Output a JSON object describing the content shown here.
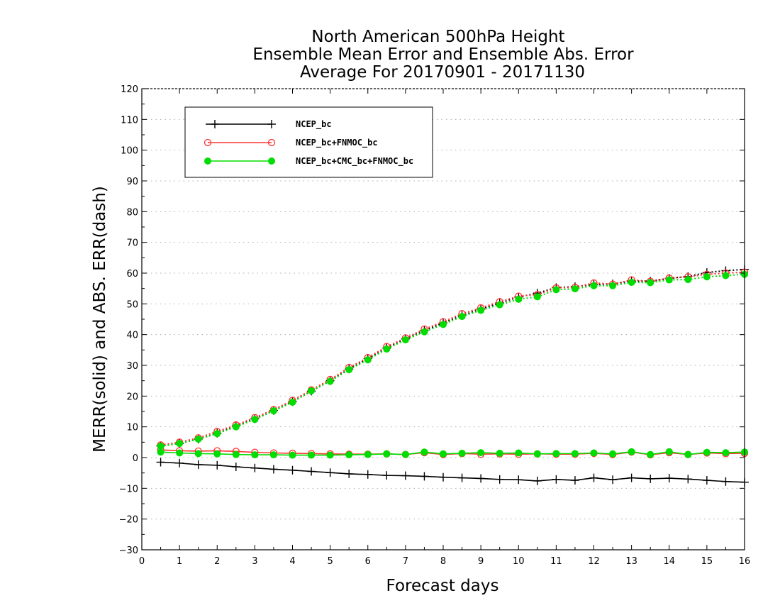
{
  "colors": {
    "background": "#ffffff",
    "frame": "#000000",
    "grid": "#b0b0b0",
    "NCEP_bc": "#000000",
    "NCEP_bc+FNMOC_bc": "#ff3333",
    "NCEP_bc+CMC_bc+FNMOC_bc": "#00dd00"
  },
  "chart_data": {
    "type": "line",
    "title": [
      "North American 500hPa Height",
      "Ensemble Mean Error and Ensemble Abs. Error",
      "Average For 20170901 - 20171130"
    ],
    "xlabel": "Forecast days",
    "ylabel": "MERR(solid) and ABS. ERR(dash)",
    "xlim": [
      0,
      16
    ],
    "ylim": [
      -30,
      120
    ],
    "xticks": [
      0,
      1,
      2,
      3,
      4,
      5,
      6,
      7,
      8,
      9,
      10,
      11,
      12,
      13,
      14,
      15,
      16
    ],
    "yticks": [
      -30,
      -20,
      -10,
      0,
      10,
      20,
      30,
      40,
      50,
      60,
      70,
      80,
      90,
      100,
      110,
      120
    ],
    "grid": true,
    "legend_position": "top-left",
    "x": [
      0.5,
      1,
      1.5,
      2,
      2.5,
      3,
      3.5,
      4,
      4.5,
      5,
      5.5,
      6,
      6.5,
      7,
      7.5,
      8,
      8.5,
      9,
      9.5,
      10,
      10.5,
      11,
      11.5,
      12,
      12.5,
      13,
      13.5,
      14,
      14.5,
      15,
      15.5,
      16
    ],
    "series": [
      {
        "name": "NCEP_bc",
        "color": "#000000",
        "marker": "plus",
        "merr": [
          -1.5,
          -1.8,
          -2.3,
          -2.5,
          -3.0,
          -3.4,
          -3.8,
          -4.1,
          -4.5,
          -4.9,
          -5.3,
          -5.5,
          -5.8,
          -5.9,
          -6.1,
          -6.4,
          -6.6,
          -6.8,
          -7.1,
          -7.2,
          -7.6,
          -7.1,
          -7.4,
          -6.6,
          -7.2,
          -6.6,
          -6.9,
          -6.7,
          -7.0,
          -7.4,
          -7.8,
          -8.0
        ],
        "abs_err": [
          3.8,
          4.6,
          6.0,
          7.9,
          10.3,
          12.6,
          15.3,
          18.2,
          21.6,
          25.0,
          28.8,
          32.2,
          35.6,
          38.6,
          41.3,
          43.8,
          46.2,
          48.3,
          50.3,
          52.2,
          53.5,
          55.3,
          55.6,
          56.3,
          56.5,
          57.4,
          57.4,
          58.3,
          58.9,
          60.2,
          60.8,
          61.2
        ]
      },
      {
        "name": "NCEP_bc+FNMOC_bc",
        "color": "#ff3333",
        "marker": "open-circle",
        "merr": [
          2.5,
          2.2,
          2.1,
          2.2,
          2.0,
          1.7,
          1.5,
          1.4,
          1.3,
          1.2,
          1.1,
          1.1,
          1.2,
          1.0,
          1.6,
          1.0,
          1.3,
          1.1,
          1.2,
          1.1,
          1.2,
          1.1,
          1.1,
          1.4,
          1.0,
          1.8,
          0.9,
          1.6,
          1.0,
          1.5,
          1.3,
          1.4
        ],
        "abs_err": [
          4.1,
          5.0,
          6.4,
          8.5,
          10.6,
          13.0,
          15.6,
          18.6,
          22.0,
          25.4,
          29.3,
          32.5,
          36.1,
          38.9,
          41.8,
          44.2,
          46.8,
          48.7,
          50.7,
          52.5,
          53.0,
          55.2,
          55.4,
          56.8,
          56.4,
          57.8,
          57.3,
          58.4,
          58.8,
          59.6,
          60.0,
          60.3
        ]
      },
      {
        "name": "NCEP_bc+CMC_bc+FNMOC_bc",
        "color": "#00dd00",
        "marker": "filled-circle",
        "merr": [
          1.8,
          1.5,
          1.3,
          1.2,
          1.0,
          0.9,
          0.9,
          0.8,
          0.8,
          0.8,
          0.9,
          1.0,
          1.2,
          1.0,
          1.8,
          1.2,
          1.4,
          1.6,
          1.4,
          1.5,
          1.2,
          1.3,
          1.3,
          1.5,
          1.2,
          1.9,
          1.0,
          1.9,
          1.0,
          1.7,
          1.6,
          1.8
        ],
        "abs_err": [
          3.7,
          4.6,
          6.0,
          7.8,
          10.0,
          12.4,
          15.2,
          18.0,
          21.7,
          24.8,
          28.6,
          31.8,
          35.3,
          38.3,
          40.9,
          43.3,
          45.9,
          47.9,
          49.7,
          51.5,
          52.3,
          54.6,
          54.9,
          55.9,
          55.9,
          57.0,
          56.9,
          57.8,
          57.9,
          58.8,
          59.2,
          59.6
        ]
      }
    ]
  }
}
